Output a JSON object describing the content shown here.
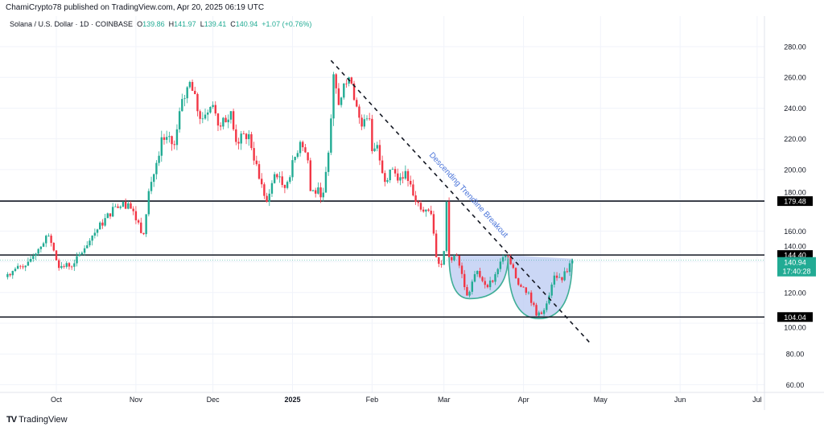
{
  "header": {
    "publisher_line": "ChamiCrypto78 published on TradingView.com, Apr 20, 2025 06:19 UTC"
  },
  "symbol": {
    "name": "Solana / U.S. Dollar · 1D · COINBASE",
    "o_label": "O",
    "o": "139.86",
    "h_label": "H",
    "h": "141.97",
    "l_label": "L",
    "l": "139.41",
    "c_label": "C",
    "c": "140.94",
    "change": "+1.07 (+0.76%)"
  },
  "footer": {
    "logo_text": "TradingView"
  },
  "colors": {
    "up": "#22ab94",
    "down": "#f23645",
    "level": "#131722",
    "cup_fill": "#b9c9f2",
    "cup_arc": "#3fae97",
    "annotation": "#4a74d9"
  },
  "chart_data": {
    "type": "candlestick",
    "title": "Solana / U.S. Dollar · 1D · COINBASE",
    "ylim": [
      50,
      295
    ],
    "price_ticks": [
      "280.00",
      "260.00",
      "240.00",
      "220.00",
      "200.00",
      "180.00",
      "160.00",
      "140.00",
      "120.00",
      "100.00",
      "80.00",
      "60.00"
    ],
    "time_ticks": [
      {
        "label": "Oct",
        "date": "2024-10-01"
      },
      {
        "label": "Nov",
        "date": "2024-11-01"
      },
      {
        "label": "Dec",
        "date": "2024-12-01"
      },
      {
        "label": "2025",
        "date": "2025-01-01"
      },
      {
        "label": "Feb",
        "date": "2025-02-01"
      },
      {
        "label": "Mar",
        "date": "2025-03-01"
      },
      {
        "label": "Apr",
        "date": "2025-04-01"
      },
      {
        "label": "May",
        "date": "2025-05-01"
      },
      {
        "label": "Jun",
        "date": "2025-06-01"
      },
      {
        "label": "Jul",
        "date": "2025-07-01"
      }
    ],
    "close_path": [
      [
        "2024-09-12",
        132
      ],
      [
        "2024-09-20",
        140
      ],
      [
        "2024-09-28",
        157
      ],
      [
        "2024-10-02",
        136
      ],
      [
        "2024-10-08",
        139
      ],
      [
        "2024-10-15",
        157
      ],
      [
        "2024-10-24",
        176
      ],
      [
        "2024-10-29",
        178
      ],
      [
        "2024-11-04",
        158
      ],
      [
        "2024-11-06",
        186
      ],
      [
        "2024-11-10",
        209
      ],
      [
        "2024-11-11",
        221
      ],
      [
        "2024-11-16",
        216
      ],
      [
        "2024-11-18",
        238
      ],
      [
        "2024-11-22",
        257
      ],
      [
        "2024-11-26",
        233
      ],
      [
        "2024-12-01",
        242
      ],
      [
        "2024-12-04",
        228
      ],
      [
        "2024-12-08",
        238
      ],
      [
        "2024-12-10",
        218
      ],
      [
        "2024-12-15",
        223
      ],
      [
        "2024-12-19",
        194
      ],
      [
        "2024-12-22",
        179
      ],
      [
        "2024-12-25",
        197
      ],
      [
        "2024-12-26",
        195
      ],
      [
        "2024-12-29",
        188
      ],
      [
        "2025-01-04",
        218
      ],
      [
        "2025-01-07",
        206
      ],
      [
        "2025-01-08",
        186
      ],
      [
        "2025-01-13",
        185
      ],
      [
        "2025-01-15",
        211
      ],
      [
        "2025-01-17",
        262
      ],
      [
        "2025-01-19",
        242
      ],
      [
        "2025-01-21",
        256
      ],
      [
        "2025-01-24",
        256
      ],
      [
        "2025-01-26",
        241
      ],
      [
        "2025-01-28",
        228
      ],
      [
        "2025-01-31",
        233
      ],
      [
        "2025-02-01",
        212
      ],
      [
        "2025-02-03",
        216
      ],
      [
        "2025-02-06",
        192
      ],
      [
        "2025-02-08",
        200
      ],
      [
        "2025-02-12",
        195
      ],
      [
        "2025-02-14",
        199
      ],
      [
        "2025-02-18",
        179
      ],
      [
        "2025-02-22",
        174
      ],
      [
        "2025-02-24",
        171
      ],
      [
        "2025-02-26",
        143
      ],
      [
        "2025-02-28",
        138
      ],
      [
        "2025-03-01",
        147
      ],
      [
        "2025-03-02",
        179
      ],
      [
        "2025-03-03",
        143
      ],
      [
        "2025-03-06",
        144
      ],
      [
        "2025-03-10",
        118
      ],
      [
        "2025-03-14",
        134
      ],
      [
        "2025-03-17",
        125
      ],
      [
        "2025-03-20",
        127
      ],
      [
        "2025-03-24",
        143
      ],
      [
        "2025-03-25",
        144
      ],
      [
        "2025-03-28",
        136
      ],
      [
        "2025-03-30",
        125
      ],
      [
        "2025-04-03",
        120
      ],
      [
        "2025-04-06",
        105
      ],
      [
        "2025-04-08",
        106
      ],
      [
        "2025-04-11",
        118
      ],
      [
        "2025-04-13",
        131
      ],
      [
        "2025-04-16",
        128
      ],
      [
        "2025-04-19",
        139
      ],
      [
        "2025-04-20",
        140.94
      ]
    ],
    "levels": [
      179.48,
      144.4,
      104.04
    ],
    "last_price": "140.94",
    "countdown": "17:40:28",
    "trendline": {
      "start": [
        "2025-01-16",
        271
      ],
      "end": [
        "2025-04-27",
        87
      ],
      "style": "dashed"
    },
    "annotation": "Descending Trendline Breakout",
    "cups": [
      {
        "start": "2025-03-03",
        "bottom_date": "2025-03-11",
        "bottom": 116,
        "end": "2025-03-26",
        "rim": 144.4
      },
      {
        "start": "2025-03-26",
        "bottom_date": "2025-04-07",
        "bottom": 103,
        "end": "2025-04-20",
        "rim": 142
      }
    ],
    "grid": true
  }
}
